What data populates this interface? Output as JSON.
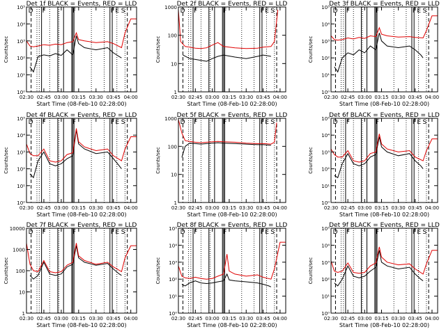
{
  "figure": {
    "start_time_label": "Start Time (08-Feb-10 02:28:00)",
    "ylabel": "Counts/sec",
    "x_ticks": [
      "02:30",
      "02:45",
      "03:00",
      "03:15",
      "03:30",
      "03:45",
      "04:00"
    ],
    "colors": {
      "events": "#000000",
      "lld": "#e00000",
      "background": "#ffffff"
    },
    "vertical_markers": {
      "solid": [
        "02:43",
        "02:57",
        "03:02",
        "03:09",
        "03:10",
        "03:11",
        "03:42",
        "03:44"
      ],
      "dotted": [
        "02:39",
        "02:41",
        "02:50",
        "02:58",
        "03:26",
        "03:37",
        "03:48",
        "03:55"
      ],
      "dashed": [
        "02:34",
        "03:57"
      ]
    },
    "marker_labels": [
      {
        "label": "D",
        "at": "02:31"
      },
      {
        "label": "F",
        "at": "02:43"
      },
      {
        "label": "F",
        "at": "03:09"
      },
      {
        "label": "F",
        "at": "03:42"
      },
      {
        "label": "E",
        "at": "03:46"
      },
      {
        "label": "S",
        "at": "03:51"
      }
    ]
  },
  "chart_data": [
    {
      "type": "line",
      "title": "Det 1f BLACK = Events, RED = LLD",
      "ylabel": "Counts/sec",
      "xlabel": "Start Time (08-Feb-10 02:28:00)",
      "log_scale": true,
      "ylim": [
        1,
        100000
      ],
      "y_ticks": [
        "10⁰",
        "10¹",
        "10²",
        "10³",
        "10⁴",
        "10⁵"
      ],
      "series": [
        {
          "name": "Events",
          "color": "#000000",
          "x": [
            "02:33",
            "02:36",
            "02:40",
            "02:45",
            "02:50",
            "02:55",
            "03:00",
            "03:05",
            "03:10",
            "03:13",
            "03:15",
            "03:20",
            "03:30",
            "03:40",
            "03:45",
            "03:50",
            "03:52"
          ],
          "values": [
            30,
            15,
            120,
            150,
            130,
            180,
            140,
            300,
            150,
            2000,
            700,
            400,
            300,
            400,
            200,
            120,
            100
          ]
        },
        {
          "name": "LLD",
          "color": "#e00000",
          "x": [
            "02:30",
            "02:33",
            "02:36",
            "02:40",
            "02:45",
            "02:50",
            "02:55",
            "03:00",
            "03:05",
            "03:10",
            "03:13",
            "03:15",
            "03:20",
            "03:30",
            "03:40",
            "03:45",
            "03:52",
            "03:55",
            "04:00",
            "04:05"
          ],
          "values": [
            1000,
            500,
            450,
            500,
            600,
            550,
            650,
            600,
            800,
            900,
            3000,
            1200,
            1000,
            800,
            900,
            700,
            400,
            3000,
            20000,
            20000
          ]
        }
      ]
    },
    {
      "type": "line",
      "title": "Det 2f BLACK = Events, RED = LLD",
      "ylabel": "Counts/sec",
      "xlabel": "Start Time (08-Feb-10 02:28:00)",
      "log_scale": true,
      "ylim": [
        1,
        1000
      ],
      "y_ticks": [
        "1",
        "10",
        "100",
        "1000"
      ],
      "series": [
        {
          "name": "Events",
          "color": "#000000",
          "x": [
            "02:34",
            "02:40",
            "02:45",
            "02:50",
            "02:55",
            "03:00",
            "03:05",
            "03:10",
            "03:20",
            "03:30",
            "03:40",
            "03:45",
            "03:52"
          ],
          "values": [
            20,
            15,
            14,
            13,
            12,
            15,
            18,
            20,
            17,
            15,
            18,
            20,
            18
          ]
        },
        {
          "name": "LLD",
          "color": "#e00000",
          "x": [
            "02:30",
            "02:32",
            "02:36",
            "02:40",
            "02:45",
            "02:50",
            "02:55",
            "03:00",
            "03:05",
            "03:10",
            "03:15",
            "03:20",
            "03:30",
            "03:40",
            "03:45",
            "03:52",
            "03:55",
            "03:58"
          ],
          "values": [
            800,
            60,
            40,
            38,
            35,
            34,
            36,
            45,
            55,
            40,
            38,
            36,
            34,
            35,
            38,
            40,
            60,
            800
          ]
        }
      ]
    },
    {
      "type": "line",
      "title": "Det 3f BLACK = Events, RED = LLD",
      "ylabel": "Counts/sec",
      "xlabel": "Start Time (08-Feb-10 02:28:00)",
      "log_scale": true,
      "ylim": [
        1,
        100000
      ],
      "y_ticks": [
        "10⁰",
        "10¹",
        "10²",
        "10³",
        "10⁴",
        "10⁵"
      ],
      "series": [
        {
          "name": "Events",
          "color": "#000000",
          "x": [
            "02:33",
            "02:36",
            "02:40",
            "02:45",
            "02:50",
            "02:55",
            "03:00",
            "03:05",
            "03:10",
            "03:13",
            "03:15",
            "03:20",
            "03:30",
            "03:40",
            "03:45",
            "03:50",
            "03:52"
          ],
          "values": [
            30,
            15,
            100,
            200,
            150,
            300,
            200,
            500,
            300,
            3000,
            1000,
            500,
            400,
            500,
            300,
            150,
            100
          ]
        },
        {
          "name": "LLD",
          "color": "#e00000",
          "x": [
            "02:30",
            "02:33",
            "02:36",
            "02:40",
            "02:45",
            "02:50",
            "02:55",
            "03:00",
            "03:05",
            "03:10",
            "03:13",
            "03:15",
            "03:20",
            "03:30",
            "03:40",
            "03:45",
            "03:52",
            "03:55",
            "04:00",
            "04:05"
          ],
          "values": [
            2000,
            1200,
            1100,
            1200,
            1500,
            1300,
            1600,
            1400,
            2000,
            1800,
            6000,
            2500,
            2000,
            1700,
            1800,
            1600,
            1500,
            4000,
            30000,
            30000
          ]
        }
      ]
    },
    {
      "type": "line",
      "title": "Det 4f BLACK = Events, RED = LLD",
      "ylabel": "Counts/sec",
      "xlabel": "Start Time (08-Feb-10 02:28:00)",
      "log_scale": true,
      "ylim": [
        1,
        100000
      ],
      "y_ticks": [
        "10⁰",
        "10¹",
        "10²",
        "10³",
        "10⁴",
        "10⁵"
      ],
      "series": [
        {
          "name": "Events",
          "color": "#000000",
          "x": [
            "02:33",
            "02:36",
            "02:40",
            "02:45",
            "02:50",
            "02:55",
            "03:00",
            "03:05",
            "03:10",
            "03:13",
            "03:15",
            "03:20",
            "03:30",
            "03:40",
            "03:45",
            "03:50",
            "03:52"
          ],
          "values": [
            50,
            30,
            300,
            1000,
            200,
            150,
            200,
            400,
            600,
            20000,
            3000,
            1500,
            800,
            1000,
            400,
            150,
            100
          ]
        },
        {
          "name": "LLD",
          "color": "#e00000",
          "x": [
            "02:30",
            "02:33",
            "02:36",
            "02:40",
            "02:45",
            "02:50",
            "02:55",
            "03:00",
            "03:05",
            "03:10",
            "03:13",
            "03:15",
            "03:20",
            "03:30",
            "03:40",
            "03:45",
            "03:52",
            "03:55",
            "04:00",
            "04:05"
          ],
          "values": [
            3000,
            800,
            600,
            600,
            1500,
            300,
            250,
            300,
            700,
            900,
            25000,
            4000,
            2000,
            1200,
            1500,
            600,
            300,
            1500,
            8000,
            8000
          ]
        }
      ]
    },
    {
      "type": "line",
      "title": "Det 5f BLACK = Events, RED = LLD",
      "ylabel": "Counts/sec",
      "xlabel": "Start Time (08-Feb-10 02:28:00)",
      "log_scale": true,
      "ylim": [
        1,
        1000
      ],
      "y_ticks": [
        "1",
        "10",
        "100",
        "1000"
      ],
      "series": [
        {
          "name": "Events",
          "color": "#000000",
          "x": [
            "02:33",
            "02:36",
            "02:40",
            "02:45",
            "02:50",
            "02:55",
            "03:00",
            "03:05",
            "03:10",
            "03:20",
            "03:30",
            "03:40",
            "03:45",
            "03:52"
          ],
          "values": [
            40,
            100,
            130,
            125,
            120,
            125,
            130,
            135,
            130,
            125,
            120,
            115,
            115,
            110
          ]
        },
        {
          "name": "LLD",
          "color": "#e00000",
          "x": [
            "02:30",
            "02:33",
            "02:36",
            "02:40",
            "02:45",
            "02:50",
            "02:55",
            "03:00",
            "03:05",
            "03:10",
            "03:20",
            "03:30",
            "03:40",
            "03:45",
            "03:52",
            "03:55",
            "03:57"
          ],
          "values": [
            900,
            300,
            160,
            150,
            140,
            135,
            140,
            145,
            150,
            145,
            140,
            130,
            125,
            125,
            120,
            140,
            700
          ]
        }
      ]
    },
    {
      "type": "line",
      "title": "Det 6f BLACK = Events, RED = LLD",
      "ylabel": "Counts/sec",
      "xlabel": "Start Time (08-Feb-10 02:28:00)",
      "log_scale": true,
      "ylim": [
        1,
        100000
      ],
      "y_ticks": [
        "10⁰",
        "10¹",
        "10²",
        "10³",
        "10⁴",
        "10⁵"
      ],
      "series": [
        {
          "name": "Events",
          "color": "#000000",
          "x": [
            "02:33",
            "02:36",
            "02:40",
            "02:45",
            "02:50",
            "02:55",
            "03:00",
            "03:05",
            "03:10",
            "03:13",
            "03:15",
            "03:20",
            "03:30",
            "03:40",
            "03:45",
            "03:50",
            "03:52"
          ],
          "values": [
            40,
            30,
            200,
            800,
            200,
            150,
            200,
            500,
            700,
            8000,
            2000,
            1000,
            600,
            800,
            300,
            150,
            100
          ]
        },
        {
          "name": "LLD",
          "color": "#e00000",
          "x": [
            "02:30",
            "02:33",
            "02:36",
            "02:40",
            "02:45",
            "02:50",
            "02:55",
            "03:00",
            "03:05",
            "03:10",
            "03:13",
            "03:15",
            "03:20",
            "03:30",
            "03:40",
            "03:45",
            "03:52",
            "03:55",
            "04:00",
            "04:05"
          ],
          "values": [
            1500,
            700,
            500,
            500,
            1200,
            300,
            250,
            300,
            800,
            1000,
            12000,
            3000,
            1500,
            1000,
            1200,
            500,
            300,
            1200,
            6000,
            6000
          ]
        }
      ]
    },
    {
      "type": "line",
      "title": "Det 7f BLACK = Events, RED = LLD",
      "ylabel": "Counts/sec",
      "xlabel": "Start Time (08-Feb-10 02:28:00)",
      "log_scale": true,
      "ylim": [
        1,
        10000
      ],
      "y_ticks": [
        "1",
        "10",
        "100",
        "1000",
        "10000"
      ],
      "series": [
        {
          "name": "Events",
          "color": "#000000",
          "x": [
            "02:33",
            "02:36",
            "02:40",
            "02:45",
            "02:50",
            "02:55",
            "03:00",
            "03:05",
            "03:10",
            "03:13",
            "03:15",
            "03:20",
            "03:30",
            "03:40",
            "03:45",
            "03:50",
            "03:52"
          ],
          "values": [
            60,
            40,
            60,
            250,
            70,
            60,
            70,
            150,
            200,
            1500,
            400,
            250,
            180,
            220,
            120,
            70,
            60
          ]
        },
        {
          "name": "LLD",
          "color": "#e00000",
          "x": [
            "02:30",
            "02:33",
            "02:36",
            "02:40",
            "02:45",
            "02:50",
            "02:55",
            "03:00",
            "03:05",
            "03:10",
            "03:13",
            "03:15",
            "03:20",
            "03:30",
            "03:40",
            "03:45",
            "03:52",
            "03:55",
            "04:00",
            "04:05"
          ],
          "values": [
            2000,
            200,
            100,
            90,
            300,
            90,
            80,
            90,
            180,
            250,
            2000,
            500,
            300,
            200,
            250,
            150,
            90,
            400,
            1500,
            1500
          ]
        }
      ]
    },
    {
      "type": "line",
      "title": "Det 8f BLACK = Events, RED = LLD",
      "ylabel": "Counts/sec",
      "xlabel": "Start Time (08-Feb-10 02:28:00)",
      "log_scale": true,
      "ylim": [
        1,
        100000
      ],
      "y_ticks": [
        "10⁰",
        "10¹",
        "10²",
        "10³",
        "10⁴",
        "10⁵"
      ],
      "series": [
        {
          "name": "Events",
          "color": "#000000",
          "x": [
            "02:33",
            "02:36",
            "02:40",
            "02:45",
            "02:50",
            "02:55",
            "03:00",
            "03:05",
            "03:10",
            "03:13",
            "03:15",
            "03:20",
            "03:30",
            "03:40",
            "03:45",
            "03:50",
            "03:52"
          ],
          "values": [
            50,
            40,
            60,
            80,
            60,
            55,
            60,
            70,
            80,
            200,
            90,
            80,
            70,
            60,
            50,
            40,
            35
          ]
        },
        {
          "name": "LLD",
          "color": "#e00000",
          "x": [
            "02:30",
            "02:33",
            "02:36",
            "02:40",
            "02:45",
            "02:50",
            "02:55",
            "03:00",
            "03:05",
            "03:10",
            "03:13",
            "03:15",
            "03:20",
            "03:30",
            "03:40",
            "03:45",
            "03:52",
            "03:55",
            "04:00",
            "04:05"
          ],
          "values": [
            600,
            150,
            120,
            110,
            130,
            110,
            100,
            110,
            150,
            200,
            3000,
            300,
            200,
            150,
            180,
            130,
            100,
            400,
            15000,
            15000
          ]
        }
      ]
    },
    {
      "type": "line",
      "title": "Det 9f BLACK = Events, RED = LLD",
      "ylabel": "Counts/sec",
      "xlabel": "Start Time (08-Feb-10 02:28:00)",
      "log_scale": true,
      "ylim": [
        1,
        100000
      ],
      "y_ticks": [
        "10⁰",
        "10¹",
        "10²",
        "10³",
        "10⁴",
        "10⁵"
      ],
      "series": [
        {
          "name": "Events",
          "color": "#000000",
          "x": [
            "02:33",
            "02:36",
            "02:40",
            "02:45",
            "02:50",
            "02:55",
            "03:00",
            "03:05",
            "03:10",
            "03:13",
            "03:15",
            "03:20",
            "03:30",
            "03:40",
            "03:45",
            "03:50",
            "03:52"
          ],
          "values": [
            60,
            40,
            100,
            600,
            150,
            120,
            150,
            300,
            500,
            5000,
            1000,
            600,
            400,
            500,
            200,
            100,
            80
          ]
        },
        {
          "name": "LLD",
          "color": "#e00000",
          "x": [
            "02:30",
            "02:33",
            "02:36",
            "02:40",
            "02:45",
            "02:50",
            "02:55",
            "03:00",
            "03:05",
            "03:10",
            "03:13",
            "03:15",
            "03:20",
            "03:30",
            "03:40",
            "03:45",
            "03:52",
            "03:55",
            "04:00",
            "04:05"
          ],
          "values": [
            1200,
            300,
            250,
            300,
            900,
            250,
            220,
            250,
            600,
            900,
            8000,
            2000,
            1000,
            700,
            800,
            400,
            200,
            800,
            5000,
            5000
          ]
        }
      ]
    }
  ]
}
